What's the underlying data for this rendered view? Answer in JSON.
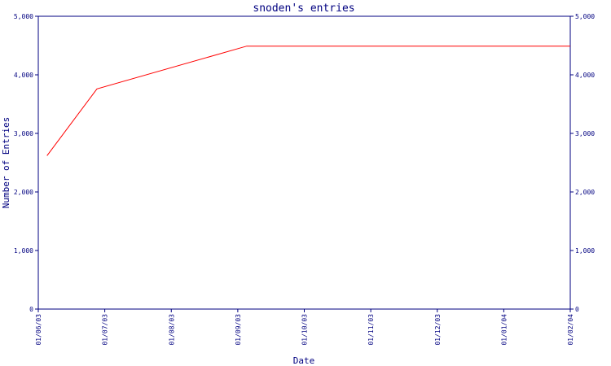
{
  "chart_data": {
    "type": "line",
    "title": "snoden's entries",
    "xlabel": "Date",
    "ylabel": "Number of Entries",
    "x_ticks": [
      "01/06/03",
      "01/07/03",
      "01/08/03",
      "01/09/03",
      "01/10/03",
      "01/11/03",
      "01/12/03",
      "01/01/04",
      "01/02/04"
    ],
    "x_range": [
      "2003-06-01",
      "2004-02-01"
    ],
    "ylim": [
      0,
      5000
    ],
    "y_ticks": [
      0,
      1000,
      2000,
      3000,
      4000,
      5000
    ],
    "y_tick_labels": [
      "0",
      "1,000",
      "2,000",
      "3,000",
      "4,000",
      "5,000"
    ],
    "grid": false,
    "series": [
      {
        "color": "#ff0000",
        "points": [
          {
            "x": "2003-06-05",
            "y": 2620
          },
          {
            "x": "2003-06-28",
            "y": 3760
          },
          {
            "x": "2003-09-05",
            "y": 4490
          },
          {
            "x": "2004-02-01",
            "y": 4490
          }
        ]
      }
    ]
  },
  "colors": {
    "axis": "#000080",
    "line": "#ff0000",
    "background": "#ffffff"
  }
}
